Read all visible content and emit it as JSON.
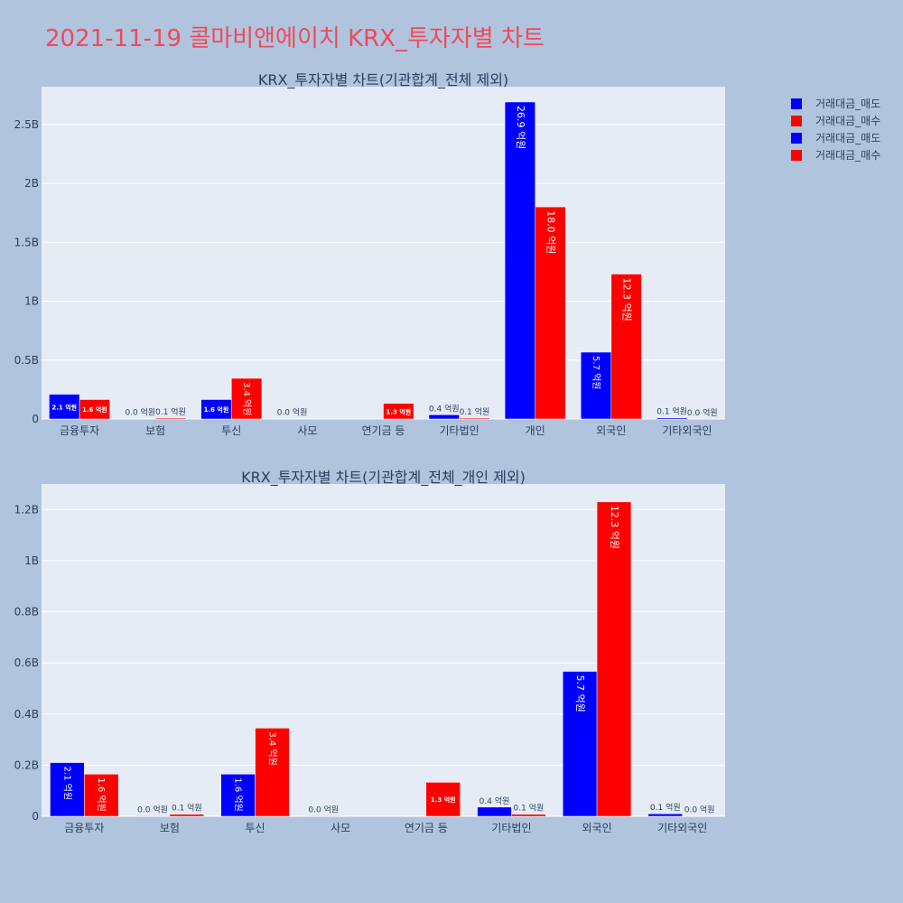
{
  "page_title": "2021-11-19 콜마비앤에이치 KRX_투자자별 차트",
  "colors": {
    "page_bg": "#b0c4de",
    "plot_bg": "#e5ecf6",
    "sell": "#0000ff",
    "buy": "#ff0000",
    "title": "#ef4a5a",
    "text": "#2a3f5f"
  },
  "legend": [
    {
      "label": "거래대금_매도",
      "color": "#0000ff"
    },
    {
      "label": "거래대금_매수",
      "color": "#ff0000"
    },
    {
      "label": "거래대금_매도",
      "color": "#0000ff"
    },
    {
      "label": "거래대금_매수",
      "color": "#ff0000"
    }
  ],
  "chart_data": [
    {
      "type": "bar",
      "title": "KRX_투자자별 차트(기관합계_전체 제외)",
      "categories": [
        "금융투자",
        "보험",
        "투신",
        "사모",
        "연기금 등",
        "기타법인",
        "개인",
        "외국인",
        "기타외국인"
      ],
      "series": [
        {
          "name": "거래대금_매도",
          "color": "#0000ff",
          "values": [
            210000000,
            2000000,
            165000000,
            2000000,
            0,
            36000000,
            2690000000,
            567000000,
            10000000
          ],
          "labels": [
            "2.1 억원",
            "0.0 억원",
            "1.6 억원",
            "0.0 억원",
            "",
            "0.4 억원",
            "26.9 억원",
            "5.7 억원",
            "0.1 억원"
          ]
        },
        {
          "name": "거래대금_매수",
          "color": "#ff0000",
          "values": [
            165000000,
            8000000,
            345000000,
            0,
            133000000,
            8000000,
            1800000000,
            1230000000,
            1000000
          ],
          "labels": [
            "1.6 억원",
            "0.1 억원",
            "3.4 억원",
            "",
            "1.3 억원",
            "0.1 억원",
            "18.0 억원",
            "12.3 억원",
            "0.0 억원"
          ]
        }
      ],
      "ylim": [
        0,
        2820000000
      ],
      "yticks": [
        0,
        500000000,
        1000000000,
        1500000000,
        2000000000,
        2500000000
      ],
      "ytick_labels": [
        "0",
        "0.5B",
        "1B",
        "1.5B",
        "2B",
        "2.5B"
      ],
      "grid": true
    },
    {
      "type": "bar",
      "title": "KRX_투자자별 차트(기관합계_전체_개인 제외)",
      "categories": [
        "금융투자",
        "보험",
        "투신",
        "사모",
        "연기금 등",
        "기타법인",
        "외국인",
        "기타외국인"
      ],
      "series": [
        {
          "name": "거래대금_매도",
          "color": "#0000ff",
          "values": [
            210000000,
            2000000,
            165000000,
            2000000,
            0,
            36000000,
            567000000,
            10000000
          ],
          "labels": [
            "2.1 억원",
            "0.0 억원",
            "1.6 억원",
            "0.0 억원",
            "",
            "0.4 억원",
            "5.7 억원",
            "0.1 억원"
          ]
        },
        {
          "name": "거래대금_매수",
          "color": "#ff0000",
          "values": [
            165000000,
            8000000,
            345000000,
            0,
            133000000,
            8000000,
            1230000000,
            1000000
          ],
          "labels": [
            "1.6 억원",
            "0.1 억원",
            "3.4 억원",
            "",
            "1.3 억원",
            "0.1 억원",
            "12.3 억원",
            "0.0 억원"
          ]
        }
      ],
      "ylim": [
        0,
        1300000000
      ],
      "yticks": [
        0,
        200000000,
        400000000,
        600000000,
        800000000,
        1000000000,
        1200000000
      ],
      "ytick_labels": [
        "0",
        "0.2B",
        "0.4B",
        "0.6B",
        "0.8B",
        "1B",
        "1.2B"
      ],
      "grid": true
    }
  ]
}
